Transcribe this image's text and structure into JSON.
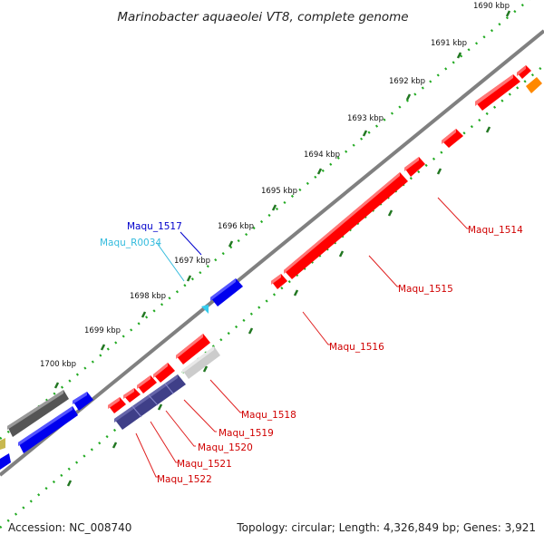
{
  "title": "Marinobacter aquaeolei VT8, complete genome",
  "footer": {
    "accession": "Accession: NC_008740",
    "summary": "Topology: circular; Length: 4,326,849 bp; Genes: 3,921"
  },
  "ticks": [
    "1690 kbp",
    "1691 kbp",
    "1692 kbp",
    "1693 kbp",
    "1694 kbp",
    "1695 kbp",
    "1696 kbp",
    "1697 kbp",
    "1698 kbp",
    "1699 kbp",
    "1700 kbp"
  ],
  "labels": {
    "maqu_1514": "Maqu_1514",
    "maqu_1515": "Maqu_1515",
    "maqu_1516": "Maqu_1516",
    "maqu_1517": "Maqu_1517",
    "maqu_r0034": "Maqu_R0034",
    "maqu_1518": "Maqu_1518",
    "maqu_1519": "Maqu_1519",
    "maqu_1520": "Maqu_1520",
    "maqu_1521": "Maqu_1521",
    "maqu_1522": "Maqu_1522"
  },
  "colors": {
    "forward_gene": "#ff0000",
    "reverse_gene": "#0000ee",
    "rna_gene": "#33ccee",
    "grey_gene": "#666666",
    "light_gene": "#cccccc",
    "navy_gene": "#44448a",
    "orange_gene": "#ff8800",
    "olive_gene": "#c8b850",
    "backbone": "#808080",
    "tick": "#22aa22"
  }
}
